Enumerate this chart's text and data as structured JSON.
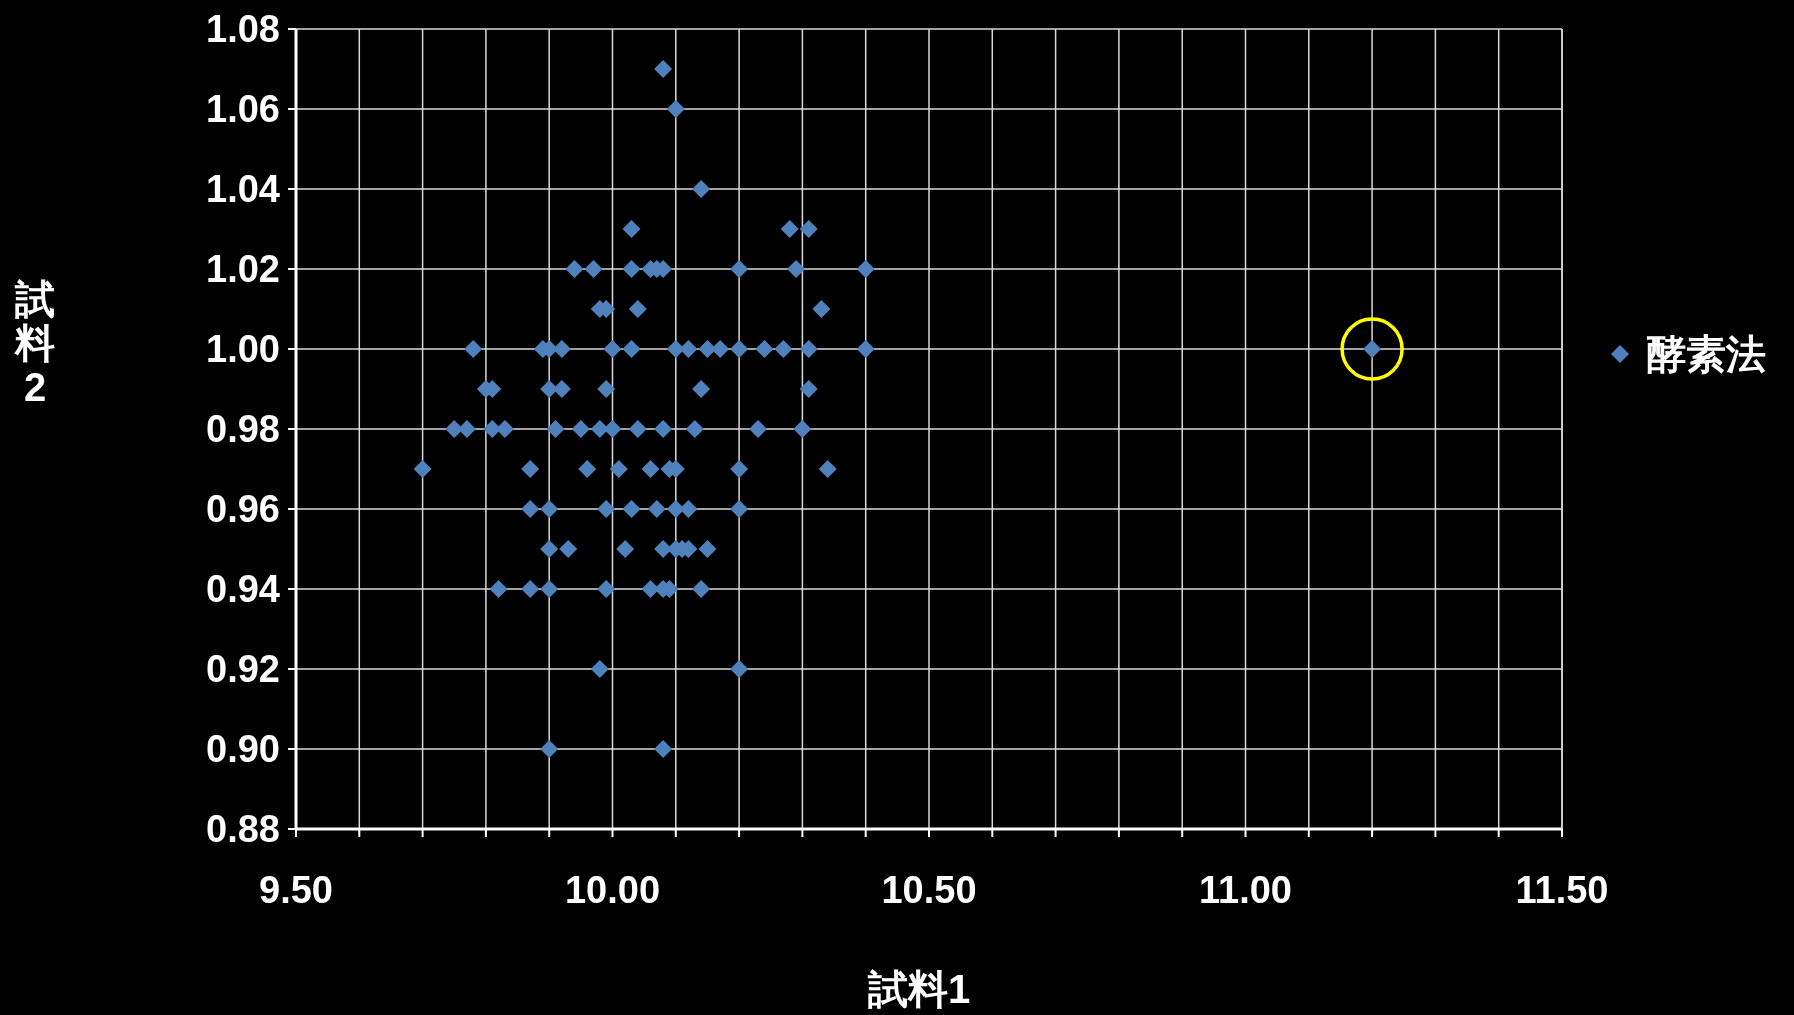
{
  "chart_data": {
    "type": "scatter",
    "xlabel": "試料1",
    "ylabel": "試料2",
    "x": [
      10.08,
      10.1,
      10.14,
      10.03,
      10.28,
      10.31,
      9.94,
      9.97,
      10.03,
      10.06,
      10.07,
      10.08,
      10.2,
      10.29,
      10.4,
      9.98,
      9.99,
      10.04,
      10.33,
      9.78,
      9.89,
      9.9,
      9.92,
      10.0,
      10.03,
      10.1,
      10.12,
      10.15,
      10.17,
      10.2,
      10.24,
      10.27,
      10.31,
      10.4,
      9.8,
      9.81,
      9.9,
      9.92,
      9.99,
      10.14,
      10.31,
      9.75,
      9.77,
      9.81,
      9.83,
      9.91,
      9.95,
      9.98,
      10.0,
      10.04,
      10.08,
      10.13,
      10.23,
      10.3,
      9.7,
      9.87,
      9.96,
      10.01,
      10.06,
      10.09,
      10.1,
      10.2,
      10.34,
      9.87,
      9.9,
      9.99,
      10.03,
      10.07,
      10.1,
      10.12,
      10.2,
      9.9,
      9.93,
      10.02,
      10.08,
      10.1,
      10.11,
      10.12,
      10.15,
      9.82,
      9.87,
      9.9,
      9.99,
      10.06,
      10.08,
      10.09,
      10.14,
      9.98,
      10.2,
      9.9,
      10.08,
      11.2
    ],
    "series": [
      {
        "name": "酵素法",
        "color": "#4f81bd",
        "values": [
          1.07,
          1.06,
          1.04,
          1.03,
          1.03,
          1.03,
          1.02,
          1.02,
          1.02,
          1.02,
          1.02,
          1.02,
          1.02,
          1.02,
          1.02,
          1.01,
          1.01,
          1.01,
          1.01,
          1.0,
          1.0,
          1.0,
          1.0,
          1.0,
          1.0,
          1.0,
          1.0,
          1.0,
          1.0,
          1.0,
          1.0,
          1.0,
          1.0,
          1.0,
          0.99,
          0.99,
          0.99,
          0.99,
          0.99,
          0.99,
          0.99,
          0.98,
          0.98,
          0.98,
          0.98,
          0.98,
          0.98,
          0.98,
          0.98,
          0.98,
          0.98,
          0.98,
          0.98,
          0.98,
          0.97,
          0.97,
          0.97,
          0.97,
          0.97,
          0.97,
          0.97,
          0.97,
          0.97,
          0.96,
          0.96,
          0.96,
          0.96,
          0.96,
          0.96,
          0.96,
          0.96,
          0.95,
          0.95,
          0.95,
          0.95,
          0.95,
          0.95,
          0.95,
          0.95,
          0.94,
          0.94,
          0.94,
          0.94,
          0.94,
          0.94,
          0.94,
          0.94,
          0.92,
          0.92,
          0.9,
          0.9,
          1.0
        ]
      }
    ],
    "xlim": [
      9.5,
      11.5
    ],
    "xticks": [
      {
        "value": 9.5,
        "label": "9.50"
      },
      {
        "value": 9.6,
        "label": null
      },
      {
        "value": 9.7,
        "label": null
      },
      {
        "value": 9.8,
        "label": null
      },
      {
        "value": 9.9,
        "label": null
      },
      {
        "value": 10.0,
        "label": "10.00"
      },
      {
        "value": 10.1,
        "label": null
      },
      {
        "value": 10.2,
        "label": null
      },
      {
        "value": 10.3,
        "label": null
      },
      {
        "value": 10.4,
        "label": null
      },
      {
        "value": 10.5,
        "label": "10.50"
      },
      {
        "value": 10.6,
        "label": null
      },
      {
        "value": 10.7,
        "label": null
      },
      {
        "value": 10.8,
        "label": null
      },
      {
        "value": 10.9,
        "label": null
      },
      {
        "value": 11.0,
        "label": "11.00"
      },
      {
        "value": 11.1,
        "label": null
      },
      {
        "value": 11.2,
        "label": null
      },
      {
        "value": 11.3,
        "label": null
      },
      {
        "value": 11.4,
        "label": null
      },
      {
        "value": 11.5,
        "label": "11.50"
      }
    ],
    "ylim": [
      0.88,
      1.08
    ],
    "yticks": [
      {
        "value": 0.88,
        "label": "0.88"
      },
      {
        "value": 0.9,
        "label": "0.90"
      },
      {
        "value": 0.92,
        "label": "0.92"
      },
      {
        "value": 0.94,
        "label": "0.94"
      },
      {
        "value": 0.96,
        "label": "0.96"
      },
      {
        "value": 0.98,
        "label": "0.98"
      },
      {
        "value": 1.0,
        "label": "1.00"
      },
      {
        "value": 1.02,
        "label": "1.02"
      },
      {
        "value": 1.04,
        "label": "1.04"
      },
      {
        "value": 1.06,
        "label": "1.06"
      },
      {
        "value": 1.08,
        "label": "1.08"
      }
    ],
    "grid": true,
    "legend": "right",
    "marker": "diamond"
  }
}
